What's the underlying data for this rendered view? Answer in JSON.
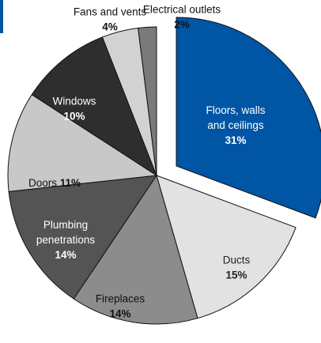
{
  "chart_data": {
    "type": "pie",
    "title": "",
    "exploded": "Floors, walls and ceilings",
    "slices": [
      {
        "label": "Floors, walls and ceilings",
        "lines": [
          "Floors, walls",
          "and ceilings"
        ],
        "percent": "31%",
        "value": 31,
        "color": "#0055a4",
        "text_color": "#ffffff"
      },
      {
        "label": "Ducts",
        "lines": [
          "Ducts"
        ],
        "percent": "15%",
        "value": 15,
        "color": "#e2e2e2",
        "text_color": "#222222"
      },
      {
        "label": "Fireplaces",
        "lines": [
          "Fireplaces"
        ],
        "percent": "14%",
        "value": 14,
        "color": "#8c8c8c",
        "text_color": "#111111"
      },
      {
        "label": "Plumbing penetrations",
        "lines": [
          "Plumbing",
          "penetrations"
        ],
        "percent": "14%",
        "value": 14,
        "color": "#545454",
        "text_color": "#ffffff"
      },
      {
        "label": "Doors",
        "lines": [
          "Doors"
        ],
        "percent": "11%",
        "value": 11,
        "color": "#c8c8c8",
        "text_color": "#111111"
      },
      {
        "label": "Windows",
        "lines": [
          "Windows"
        ],
        "percent": "10%",
        "value": 10,
        "color": "#2e2e2e",
        "text_color": "#ffffff"
      },
      {
        "label": "Fans and vents",
        "lines": [
          "Fans and vents"
        ],
        "percent": "4%",
        "value": 4,
        "color": "#d2d2d2",
        "text_color": "#111111"
      },
      {
        "label": "Electrical outlets",
        "lines": [
          "Electrical outlets"
        ],
        "percent": "2%",
        "value": 2,
        "color": "#7a7a7a",
        "text_color": "#111111"
      }
    ],
    "colors": {
      "accent": "#0055a4",
      "background": "#ffffff",
      "edge": "#111111"
    }
  }
}
